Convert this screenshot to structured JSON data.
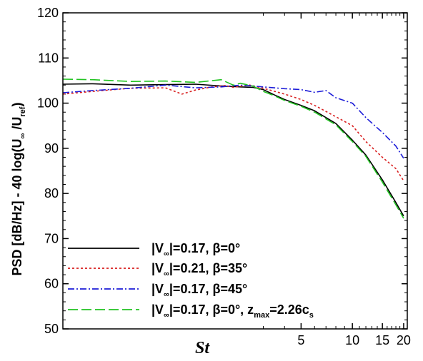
{
  "chart_data": {
    "type": "line",
    "xlabel": "St",
    "ylabel": {
      "main": "PSD [dB/Hz] - 40 log(U",
      "sub1": "∞",
      "mid": " /U",
      "sub2": "ref",
      "end": ")"
    },
    "x_scale": "log",
    "xlim": [
      0.2,
      21
    ],
    "ylim": [
      50,
      120
    ],
    "x_ticks": [
      5,
      10,
      15,
      20
    ],
    "x_tick_labels": [
      "5",
      "10",
      "15",
      "20"
    ],
    "y_ticks": [
      50,
      60,
      70,
      80,
      90,
      100,
      110,
      120
    ],
    "y_tick_labels": [
      "50",
      "60",
      "70",
      "80",
      "90",
      "100",
      "110",
      "120"
    ],
    "legend_position": "bottom-left",
    "series": [
      {
        "name": "|V∞|=0.17, β=0°",
        "legend": {
          "pre": "|V",
          "sub": "∞",
          "post": "|=0.17, β=0°"
        },
        "color": "#000000",
        "dash": "",
        "x": [
          0.2,
          0.3,
          0.5,
          0.8,
          1.2,
          1.7,
          2.2,
          2.6,
          3.0,
          3.5,
          4.0,
          5.0,
          6.0,
          8.0,
          10.0,
          12.0,
          15.0,
          18.0,
          20.0
        ],
        "y": [
          104.2,
          104.3,
          104.0,
          104.1,
          104.2,
          103.8,
          103.6,
          103.5,
          103.0,
          101.8,
          100.8,
          99.5,
          98.3,
          95.5,
          91.8,
          88.5,
          83.0,
          78.0,
          75.0
        ]
      },
      {
        "name": "|V∞|=0.21, β=35°",
        "legend": {
          "pre": "|V",
          "sub": "∞",
          "post": "|=0.21, β=35°"
        },
        "color": "#d81e1e",
        "dash": "3,3",
        "x": [
          0.2,
          0.3,
          0.5,
          0.8,
          1.0,
          1.2,
          1.5,
          1.8,
          2.0,
          2.5,
          3.0,
          4.0,
          5.0,
          6.0,
          8.0,
          10.0,
          12.0,
          15.0,
          18.0,
          20.0
        ],
        "y": [
          102.0,
          102.6,
          103.3,
          103.4,
          102.0,
          102.9,
          103.6,
          103.9,
          103.5,
          104.0,
          103.3,
          102.0,
          100.8,
          99.5,
          97.0,
          95.0,
          91.5,
          88.0,
          85.5,
          82.8
        ]
      },
      {
        "name": "|V∞|=0.17, β=45°",
        "legend": {
          "pre": "|V",
          "sub": "∞",
          "post": "|=0.17, β=45°"
        },
        "color": "#1c1cd8",
        "dash": "9,3,2,3",
        "x": [
          0.2,
          0.3,
          0.5,
          0.8,
          1.2,
          1.7,
          2.2,
          2.6,
          3.0,
          4.0,
          5.0,
          6.0,
          7.0,
          8.0,
          10.0,
          12.0,
          15.0,
          18.0,
          20.0
        ],
        "y": [
          102.3,
          102.8,
          103.3,
          104.0,
          103.4,
          103.6,
          104.0,
          103.8,
          103.6,
          103.2,
          103.0,
          102.4,
          102.8,
          101.2,
          100.0,
          96.8,
          93.5,
          90.5,
          87.8
        ]
      },
      {
        "name": "|V∞|=0.17, β=0°, zmax=2.26cs",
        "legend": {
          "pre": "|V",
          "sub": "∞",
          "post": "|=0.17, β=0°, z",
          "sub2": "max",
          "post2": "=2.26c",
          "sub3": "s"
        },
        "color": "#22c322",
        "dash": "14,5",
        "x": [
          0.2,
          0.3,
          0.5,
          0.8,
          1.2,
          1.7,
          2.0,
          2.2,
          2.6,
          3.0,
          3.5,
          4.0,
          5.0,
          6.0,
          8.0,
          10.0,
          12.0,
          15.0,
          18.0,
          20.0
        ],
        "y": [
          105.3,
          105.2,
          104.8,
          104.9,
          104.6,
          105.2,
          104.0,
          104.4,
          103.8,
          102.6,
          101.6,
          100.6,
          99.3,
          98.0,
          95.2,
          91.5,
          88.2,
          82.5,
          77.5,
          74.5
        ]
      }
    ]
  }
}
